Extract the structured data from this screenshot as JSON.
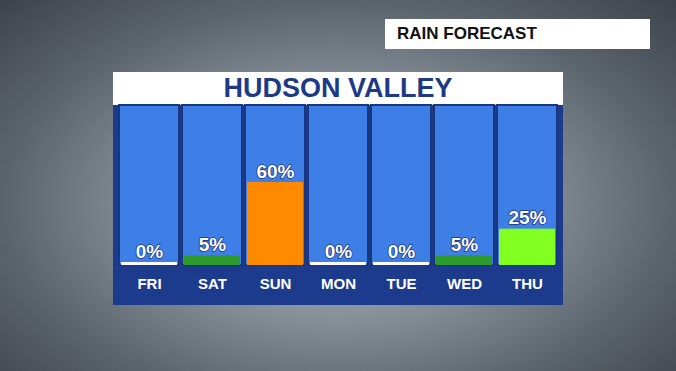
{
  "chart_data": {
    "type": "bar",
    "title": "HUDSON VALLEY",
    "subtitle": "RAIN FORECAST",
    "categories": [
      "FRI",
      "SAT",
      "SUN",
      "MON",
      "TUE",
      "WED",
      "THU"
    ],
    "values": [
      0,
      5,
      60,
      0,
      0,
      5,
      25
    ],
    "value_labels": [
      "0%",
      "5%",
      "60%",
      "0%",
      "0%",
      "5%",
      "25%"
    ],
    "colors": [
      "#ffffff",
      "#2c9a2c",
      "#ff8a00",
      "#ffffff",
      "#ffffff",
      "#2c9a2c",
      "#80ff20"
    ],
    "ylim": [
      0,
      120
    ],
    "data_labels": true,
    "tick_labels": "x"
  }
}
